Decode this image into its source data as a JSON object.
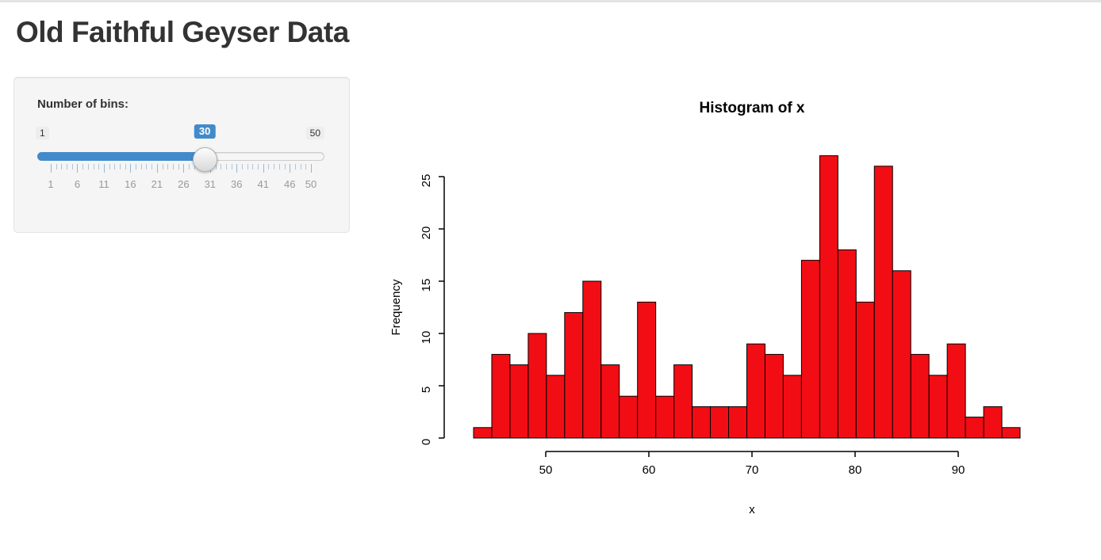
{
  "page": {
    "title": "Old Faithful Geyser Data"
  },
  "sidebar": {
    "slider": {
      "label": "Number of bins:",
      "min": 1,
      "max": 50,
      "value": 30,
      "min_label": "1",
      "max_label": "50",
      "value_label": "30",
      "grid_labels": [
        1,
        6,
        11,
        16,
        21,
        26,
        31,
        36,
        41,
        46,
        50
      ],
      "accent_color": "#428bca"
    }
  },
  "chart_data": {
    "type": "bar",
    "title": "Histogram of x",
    "xlabel": "x",
    "ylabel": "Frequency",
    "bin_start": 43,
    "bin_end": 96,
    "bin_count": 30,
    "values": [
      1,
      8,
      7,
      10,
      6,
      12,
      15,
      7,
      4,
      13,
      4,
      7,
      3,
      3,
      3,
      9,
      8,
      6,
      17,
      27,
      18,
      13,
      26,
      16,
      8,
      6,
      9,
      2,
      3,
      1
    ],
    "x_ticks": [
      50,
      60,
      70,
      80,
      90
    ],
    "y_ticks": [
      0,
      5,
      10,
      15,
      20,
      25
    ],
    "ylim": [
      0,
      27
    ],
    "grid": false,
    "legend": "none",
    "bar_color": "#f20d14",
    "bar_border": "#000000",
    "axis_color": "#000000"
  }
}
